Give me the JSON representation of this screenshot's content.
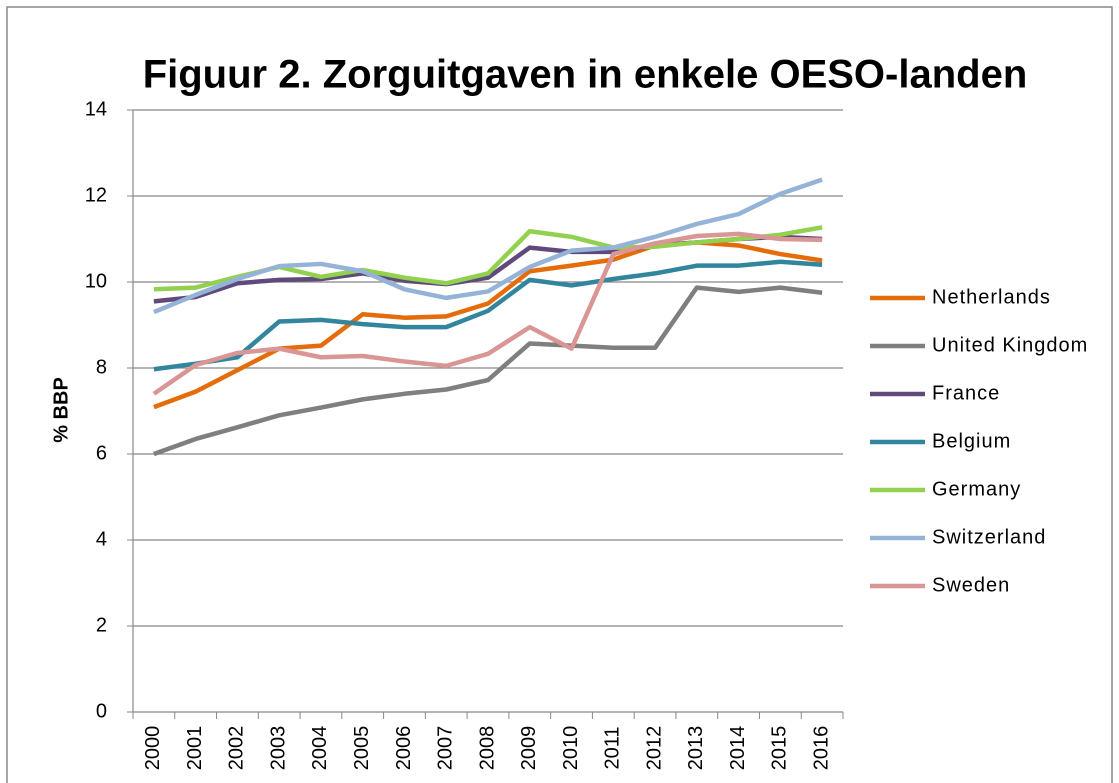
{
  "chart_data": {
    "type": "line",
    "title": "Figuur 2. Zorguitgaven in enkele OESO-landen",
    "y_label": "% BBP",
    "categories": [
      "2000",
      "2001",
      "2002",
      "2003",
      "2004",
      "2005",
      "2006",
      "2007",
      "2008",
      "2009",
      "2010",
      "2011",
      "2012",
      "2013",
      "2014",
      "2015",
      "2016"
    ],
    "ylim": [
      0,
      14
    ],
    "yticks": [
      0,
      2,
      4,
      6,
      8,
      10,
      12,
      14
    ],
    "grid": true,
    "legend": "right",
    "series": [
      {
        "name": "Netherlands",
        "color": "#e46c0a",
        "values": [
          7.09,
          7.45,
          7.95,
          8.45,
          8.52,
          9.25,
          9.17,
          9.2,
          9.5,
          10.25,
          10.38,
          10.52,
          10.85,
          10.92,
          10.85,
          10.65,
          10.5
        ]
      },
      {
        "name": "United Kingdom",
        "color": "#7f7f7f",
        "values": [
          6.0,
          6.35,
          6.62,
          6.9,
          7.08,
          7.27,
          7.4,
          7.5,
          7.72,
          8.57,
          8.52,
          8.47,
          8.47,
          9.87,
          9.77,
          9.87,
          9.75
        ]
      },
      {
        "name": "France",
        "color": "#604a7b",
        "values": [
          9.55,
          9.65,
          9.97,
          10.05,
          10.07,
          10.2,
          10.03,
          9.95,
          10.1,
          10.8,
          10.7,
          10.7,
          10.85,
          10.92,
          11.0,
          11.05,
          11.0
        ]
      },
      {
        "name": "Belgium",
        "color": "#31859c",
        "values": [
          7.97,
          8.1,
          8.25,
          9.08,
          9.12,
          9.02,
          8.95,
          8.95,
          9.33,
          10.05,
          9.92,
          10.07,
          10.2,
          10.38,
          10.38,
          10.47,
          10.4
        ]
      },
      {
        "name": "Germany",
        "color": "#92d050",
        "values": [
          9.83,
          9.87,
          10.12,
          10.35,
          10.12,
          10.28,
          10.1,
          9.97,
          10.2,
          11.18,
          11.05,
          10.8,
          10.82,
          10.92,
          11.0,
          11.1,
          11.27
        ]
      },
      {
        "name": "Switzerland",
        "color": "#95b3d7",
        "values": [
          9.3,
          9.7,
          10.07,
          10.37,
          10.42,
          10.25,
          9.83,
          9.63,
          9.78,
          10.35,
          10.73,
          10.8,
          11.05,
          11.35,
          11.58,
          12.05,
          12.38
        ]
      },
      {
        "name": "Sweden",
        "color": "#d99694",
        "values": [
          7.4,
          8.07,
          8.35,
          8.45,
          8.25,
          8.28,
          8.15,
          8.05,
          8.33,
          8.95,
          8.45,
          10.65,
          10.9,
          11.07,
          11.12,
          11.0,
          10.98
        ]
      }
    ]
  }
}
